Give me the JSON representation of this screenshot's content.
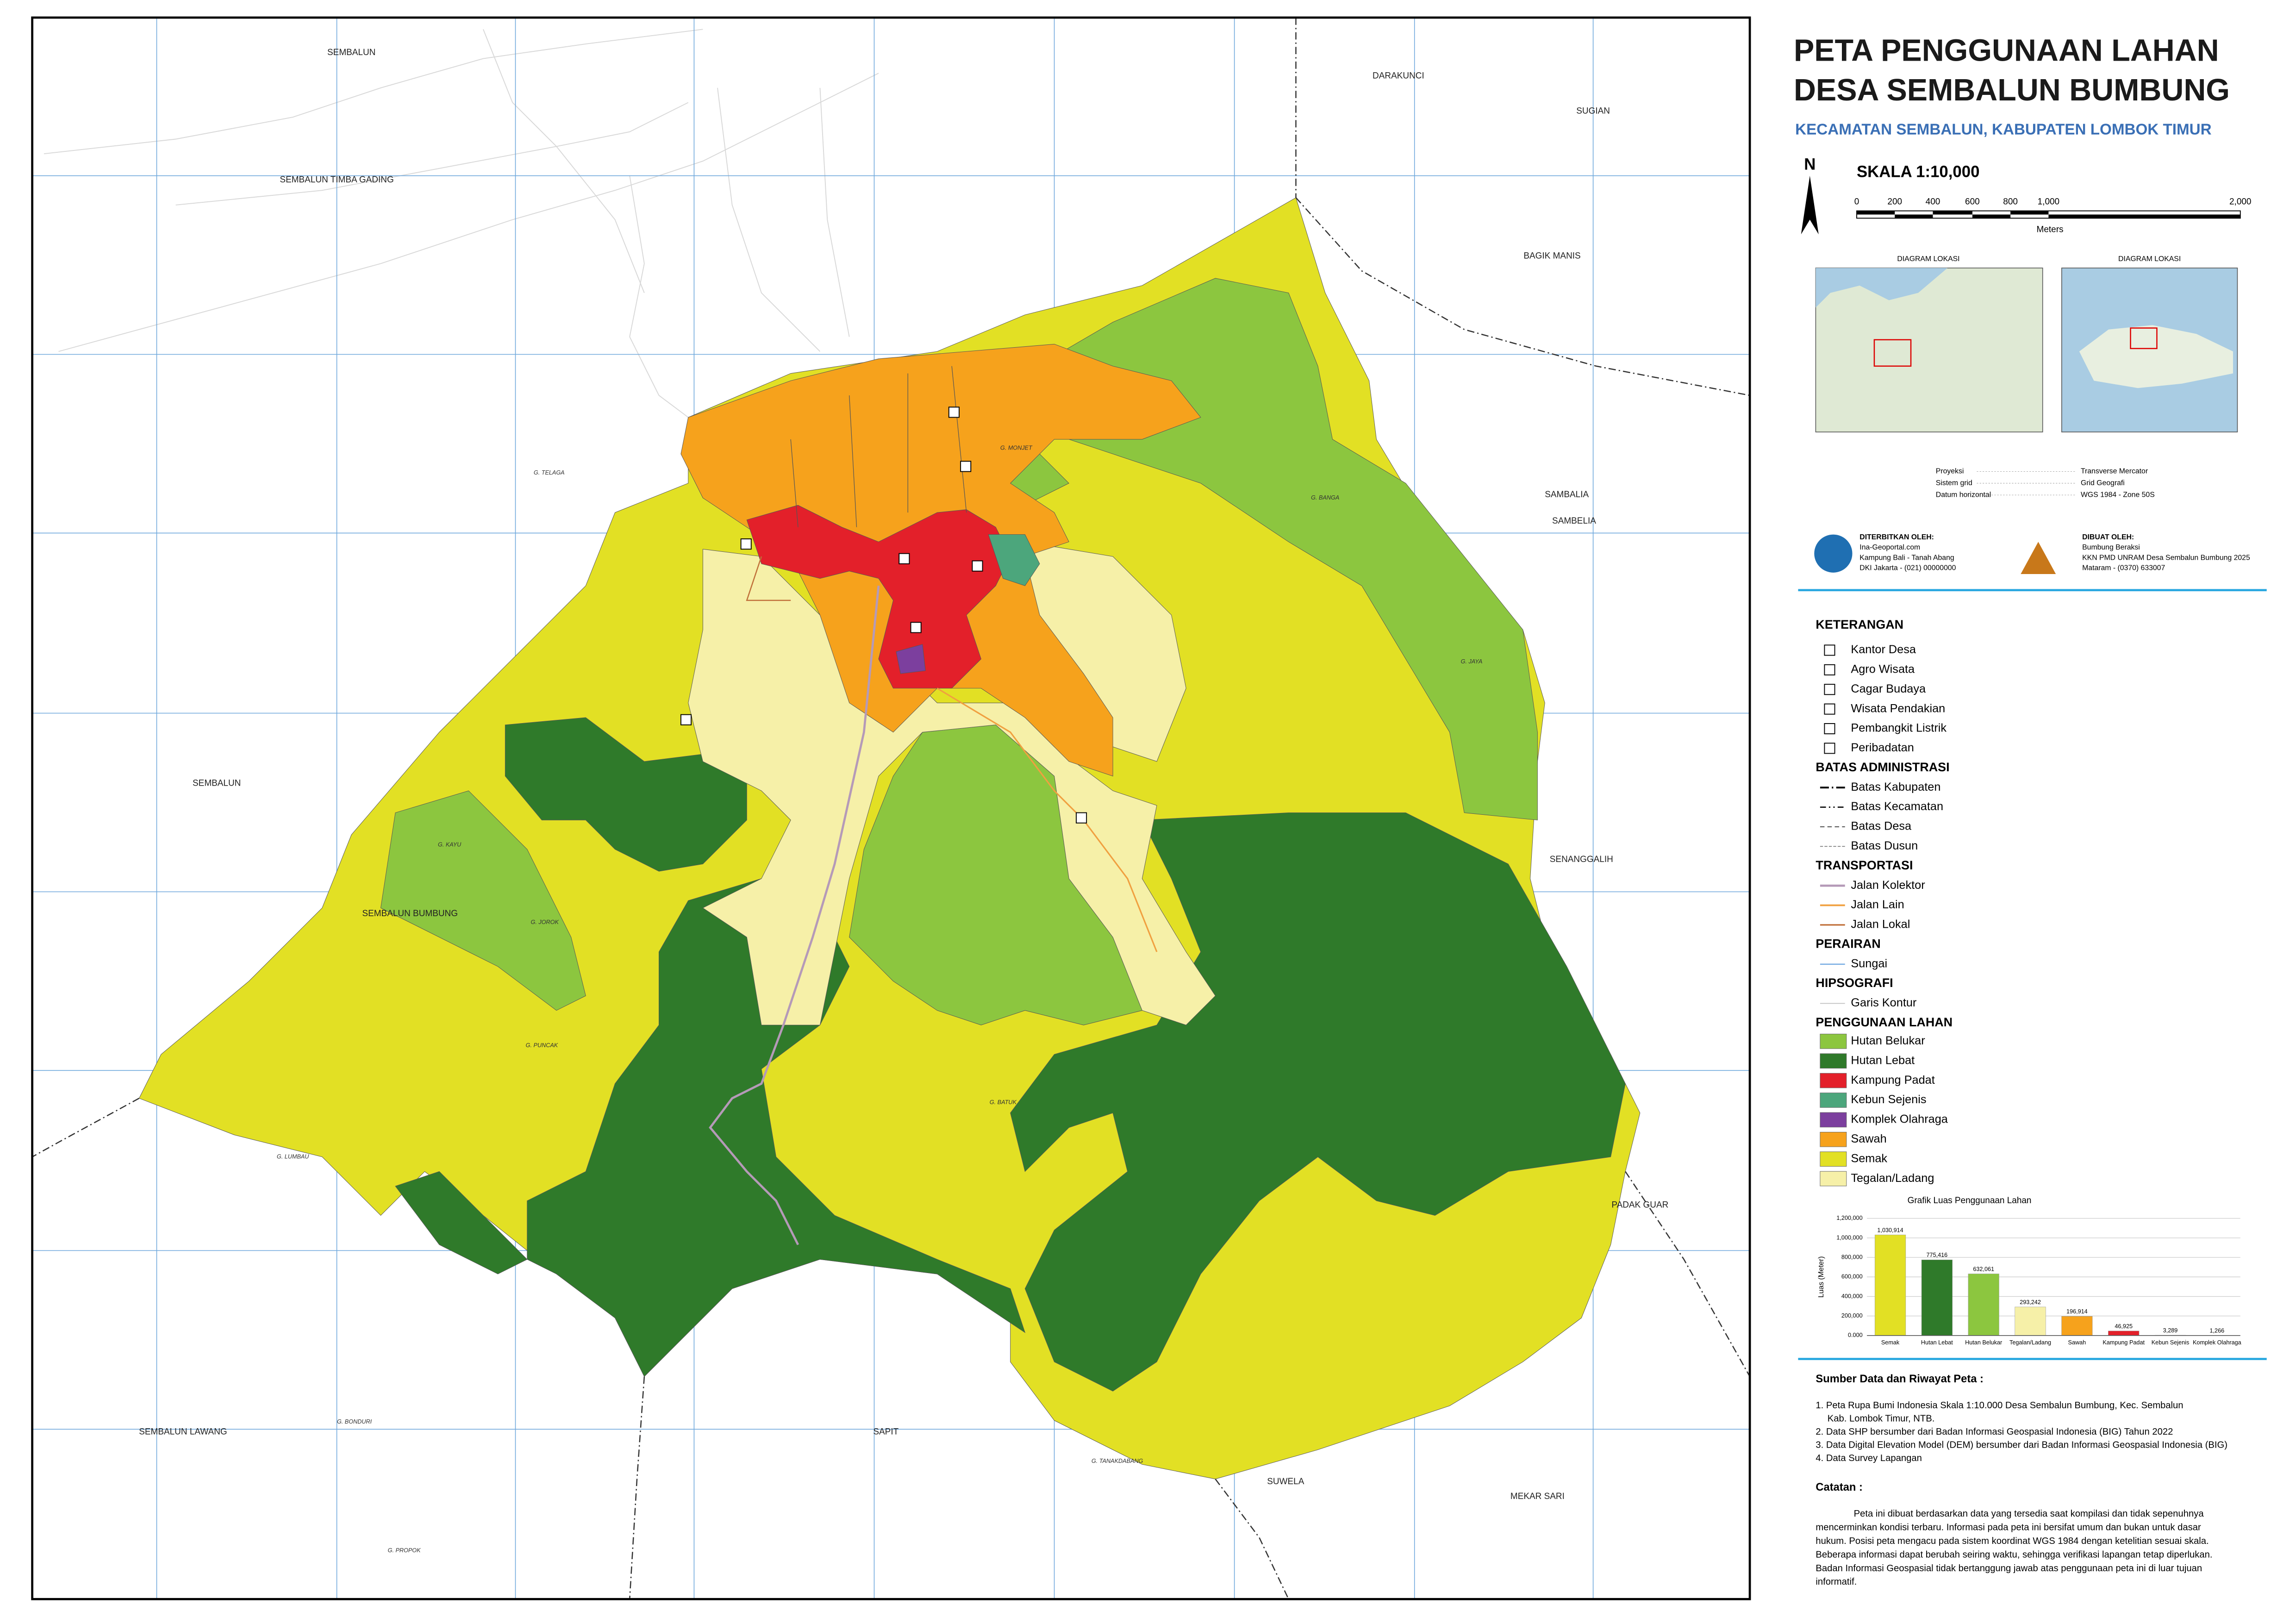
{
  "header": {
    "title_line1": "PETA PENGGUNAAN LAHAN",
    "title_line2": "DESA SEMBALUN BUMBUNG",
    "subtitle": "KECAMATAN SEMBALUN, KABUPATEN LOMBOK TIMUR"
  },
  "north": "N",
  "scale": {
    "title": "SKALA 1:10,000",
    "labels": [
      "0",
      "200",
      "400",
      "600",
      "800",
      "1,000",
      "2,000"
    ],
    "unit": "Meters"
  },
  "location_diagrams": [
    "DIAGRAM LOKASI",
    "DIAGRAM LOKASI"
  ],
  "projection": [
    [
      "Proyeksi",
      "Transverse Mercator"
    ],
    [
      "Sistem grid",
      "Grid Geografi"
    ],
    [
      "Datum horizontal",
      "WGS 1984 - Zone 50S"
    ]
  ],
  "publisher": {
    "heading": "DITERBITKAN OLEH:",
    "lines": [
      "Ina-Geoportal.com",
      "Kampung Bali - Tanah Abang",
      "DKI Jakarta - (021) 00000000"
    ]
  },
  "maker": {
    "heading": "DIBUAT OLEH:",
    "lines": [
      "Bumbung Beraksi",
      "KKN PMD UNRAM Desa Sembalun Bumbung 2025",
      "Mataram - (0370) 633007"
    ]
  },
  "legend": {
    "title": "KETERANGAN",
    "points": [
      "Kantor Desa",
      "Agro Wisata",
      "Cagar Budaya",
      "Wisata Pendakian",
      "Pembangkit Listrik",
      "Peribadatan"
    ],
    "sections": [
      {
        "title": "BATAS ADMINISTRASI",
        "items": [
          "Batas Kabupaten",
          "Batas Kecamatan",
          "Batas Desa",
          "Batas Dusun"
        ]
      },
      {
        "title": "TRANSPORTASI",
        "items": [
          "Jalan Kolektor",
          "Jalan Lain",
          "Jalan Lokal"
        ]
      },
      {
        "title": "PERAIRAN",
        "items": [
          "Sungai"
        ]
      },
      {
        "title": "HIPSOGRAFI",
        "items": [
          "Garis Kontur"
        ]
      }
    ],
    "land_use": {
      "title": "PENGGUNAAN LAHAN",
      "items": [
        {
          "label": "Hutan Belukar",
          "color": "#8cc63f"
        },
        {
          "label": "Hutan Lebat",
          "color": "#2f7a2a"
        },
        {
          "label": "Kampung Padat",
          "color": "#e3202a"
        },
        {
          "label": "Kebun Sejenis",
          "color": "#4ca67c"
        },
        {
          "label": "Komplek Olahraga",
          "color": "#7c3f9e"
        },
        {
          "label": "Sawah",
          "color": "#f6a21c"
        },
        {
          "label": "Semak",
          "color": "#e2e024"
        },
        {
          "label": "Tegalan/Ladang",
          "color": "#f6f0a8"
        }
      ]
    }
  },
  "places": [
    "SEMBALUN",
    "DARAKUNCI",
    "SUGIAN",
    "SEMBALUN TIMBA GADING",
    "BAGIK MANIS",
    "SAMBALIA",
    "SAMBELIA",
    "SEMBALUN",
    "SENANGGALIH",
    "SEMBALUN BUMBUNG",
    "PADAK GUAR",
    "SEMBALUN LAWANG",
    "SAPIT",
    "SUWELA",
    "MEKAR SARI"
  ],
  "peaks": [
    "G. MONJET",
    "G. TELAGA",
    "G. BANGA",
    "G. JAYA",
    "G. KAYU",
    "G. JOROK",
    "G. PUNCAK",
    "G. BATUK",
    "G. LUMBAU",
    "G. BONDURI",
    "G. PROPOK",
    "G. TANAKDABANG"
  ],
  "chart_data": {
    "type": "bar",
    "title": "Grafik Luas Penggunaan Lahan",
    "y_label": "Luas (Meter)",
    "categories": [
      "Semak",
      "Hutan Lebat",
      "Hutan Belukar",
      "Tegalan/Ladang",
      "Sawah",
      "Kampung Padat",
      "Kebun Sejenis",
      "Komplek Olahraga"
    ],
    "values": [
      1030914,
      775416,
      632061,
      293242,
      196914,
      46925,
      3289,
      1266
    ],
    "value_labels": [
      "1,030,914",
      "775,416",
      "632,061",
      "293,242",
      "196,914",
      "46,925",
      "3,289",
      "1,266"
    ],
    "colors": [
      "#e2e024",
      "#2f7a2a",
      "#8cc63f",
      "#f6f0a8",
      "#f6a21c",
      "#e3202a",
      "#4ca67c",
      "#7c3f9e"
    ],
    "ylim": [
      0,
      1200000
    ],
    "yticks": [
      {
        "value": 0,
        "label": "0.000"
      },
      {
        "value": 200000,
        "label": "200,000"
      },
      {
        "value": 400000,
        "label": "400,000"
      },
      {
        "value": 600000,
        "label": "600,000"
      },
      {
        "value": 800000,
        "label": "800,000"
      },
      {
        "value": 1000000,
        "label": "1,000,000"
      },
      {
        "value": 1200000,
        "label": "1,200,000"
      }
    ],
    "grid": true
  },
  "sources": {
    "title": "Sumber Data dan Riwayat Peta :",
    "items": [
      "1. Peta Rupa Bumi Indonesia Skala 1:10.000 Desa Sembalun Bumbung, Kec. Sembalun",
      "Kab. Lombok Timur, NTB.",
      "2. Data SHP bersumber dari Badan Informasi Geospasial Indonesia (BIG) Tahun 2022",
      "3. Data Digital Elevation Model (DEM) bersumber dari Badan Informasi Geospasial Indonesia (BIG)",
      "4. Data Survey Lapangan"
    ]
  },
  "notes": {
    "title": "Catatan :",
    "lines": [
      "Peta ini dibuat berdasarkan data yang tersedia saat kompilasi dan tidak sepenuhnya",
      "mencerminkan kondisi terbaru. Informasi pada peta ini bersifat umum dan bukan untuk dasar",
      "hukum. Posisi peta mengacu pada sistem koordinat WGS 1984 dengan ketelitian sesuai skala.",
      "Beberapa informasi dapat berubah seiring waktu, sehingga verifikasi lapangan tetap diperlukan.",
      "Badan Informasi Geospasial tidak bertanggung jawab atas penggunaan peta ini di luar tujuan",
      "informatif."
    ]
  }
}
